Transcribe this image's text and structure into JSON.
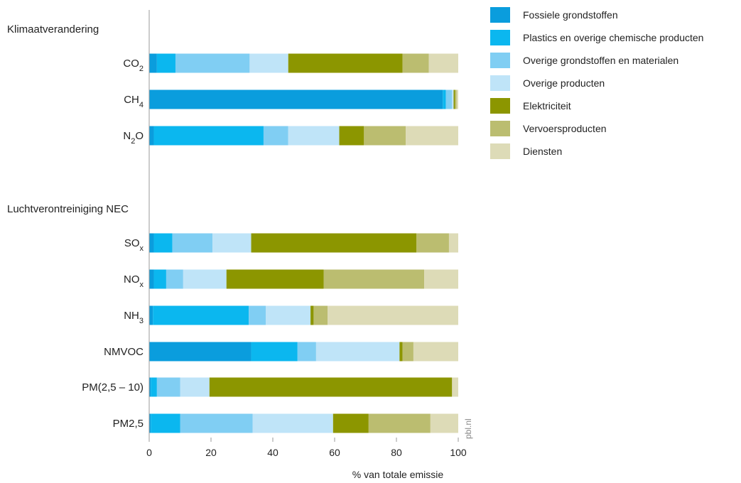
{
  "chart_data": {
    "type": "bar",
    "orientation": "horizontal",
    "stacked": true,
    "xlabel": "% van totale emissie",
    "xlim": [
      0,
      100
    ],
    "xticks": [
      "0",
      "20",
      "40",
      "60",
      "80",
      "100"
    ],
    "groups": [
      {
        "label": "Klimaatverandering"
      },
      {
        "label": "Luchtverontreiniging NEC"
      }
    ],
    "categories": [
      {
        "group": 0,
        "base": "CO",
        "sub": "2",
        "after": ""
      },
      {
        "group": 0,
        "base": "CH",
        "sub": "4",
        "after": ""
      },
      {
        "group": 0,
        "base": "N",
        "sub": "2",
        "after": "O"
      },
      {
        "group": 1,
        "base": "SO",
        "sub": "x",
        "after": ""
      },
      {
        "group": 1,
        "base": "NO",
        "sub": "x",
        "after": ""
      },
      {
        "group": 1,
        "base": "NH",
        "sub": "3",
        "after": ""
      },
      {
        "group": 1,
        "base": "NMVOC",
        "sub": "",
        "after": ""
      },
      {
        "group": 1,
        "base": "PM(2,5 – 10)",
        "sub": "",
        "after": ""
      },
      {
        "group": 1,
        "base": "PM2,5",
        "sub": "",
        "after": ""
      }
    ],
    "series": [
      {
        "name": "Fossiele grondstoffen",
        "color": "#0a9ddd",
        "values": [
          2.5,
          95,
          1.5,
          1.5,
          1.5,
          1.2,
          33,
          0.5,
          0.5
        ]
      },
      {
        "name": "Plastics en overige chemische producten",
        "color": "#0bb7ef",
        "values": [
          6,
          1,
          35.5,
          6,
          4,
          31,
          15,
          2,
          9.5
        ]
      },
      {
        "name": "Overige grondstoffen en materialen",
        "color": "#80cef3",
        "values": [
          24,
          2,
          8,
          13,
          5.5,
          5.5,
          6,
          7.5,
          23.5
        ]
      },
      {
        "name": "Overige producten",
        "color": "#bfe4f8",
        "values": [
          12.5,
          0.5,
          16.5,
          12.5,
          14,
          14.5,
          27,
          9.5,
          26
        ]
      },
      {
        "name": "Elektriciteit",
        "color": "#8c9600",
        "values": [
          37,
          0.5,
          8,
          53.5,
          31.5,
          1,
          1,
          78.5,
          11.5
        ]
      },
      {
        "name": "Vervoersproducten",
        "color": "#bbbd70",
        "values": [
          8.5,
          0.5,
          13.5,
          10.5,
          32.5,
          4.5,
          3.5,
          0,
          20
        ]
      },
      {
        "name": "Diensten",
        "color": "#dddbb7",
        "values": [
          9.5,
          0.5,
          17,
          3,
          11,
          42.3,
          14.5,
          2,
          9
        ]
      }
    ],
    "source_note": "pbl.nl"
  }
}
